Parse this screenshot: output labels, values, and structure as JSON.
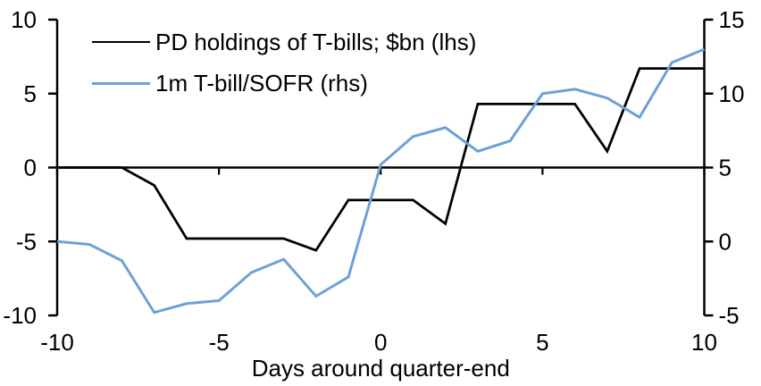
{
  "chart_data": {
    "type": "line",
    "title": "",
    "xlabel": "Days around quarter-end",
    "ylabel_left": "",
    "ylabel_right": "",
    "x": [
      -10,
      -9,
      -8,
      -7,
      -6,
      -5,
      -4,
      -3,
      -2,
      -1,
      0,
      1,
      2,
      3,
      4,
      5,
      6,
      7,
      8,
      9,
      10
    ],
    "series": [
      {
        "name": "PD holdings of T-bills; $bn (lhs)",
        "axis": "left",
        "color": "#000000",
        "stroke_width": 2.75,
        "values": [
          0,
          0,
          0,
          -1.2,
          -4.8,
          -4.8,
          -4.8,
          -4.8,
          -5.6,
          -2.2,
          -2.2,
          -2.2,
          -3.8,
          4.3,
          4.3,
          4.3,
          4.3,
          1.1,
          6.7,
          6.7,
          6.7
        ]
      },
      {
        "name": "1m T-bill/SOFR (rhs)",
        "axis": "right",
        "color": "#6CA1D7",
        "stroke_width": 3,
        "values": [
          0,
          -0.2,
          -1.3,
          -4.8,
          -4.2,
          -4.0,
          -2.1,
          -1.2,
          -3.7,
          -2.4,
          5.2,
          7.1,
          7.7,
          6.1,
          6.8,
          10.0,
          10.3,
          9.7,
          8.4,
          12.1,
          13.0
        ]
      }
    ],
    "left_axis": {
      "min": -10,
      "max": 10,
      "ticks": [
        -10,
        -5,
        0,
        5,
        10
      ]
    },
    "right_axis": {
      "min": -5,
      "max": 15,
      "ticks": [
        -5,
        0,
        5,
        10,
        15
      ]
    },
    "x_axis": {
      "min": -10,
      "max": 10,
      "ticks": [
        -10,
        -5,
        0,
        5,
        10
      ],
      "baseline_at_left_value": 0
    },
    "grid": false,
    "legend_position": "top-left",
    "background_color": "#FFFFFF",
    "axis_color": "#000000"
  }
}
